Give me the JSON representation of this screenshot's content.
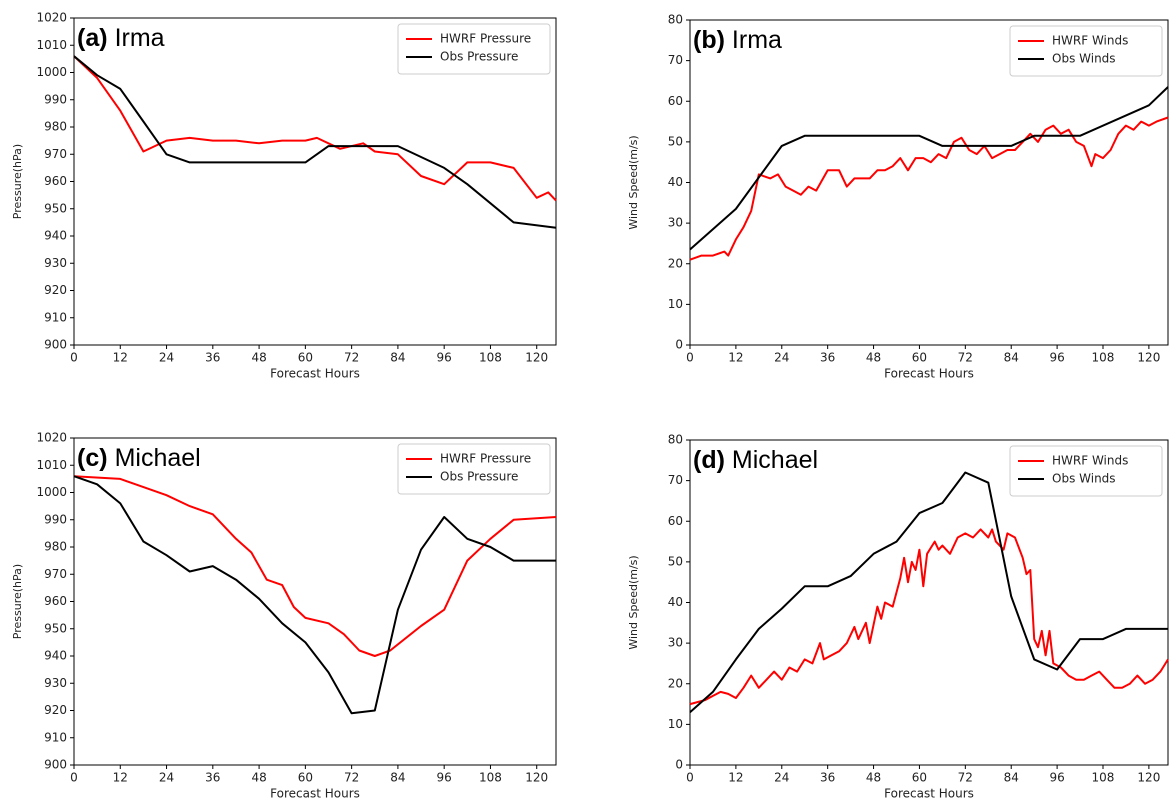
{
  "chart_data": [
    {
      "type": "line",
      "label": "(a)",
      "title": "Irma",
      "xlabel": "Forecast Hours",
      "ylabel": "Pressure(hPa)",
      "xlim": [
        0,
        125
      ],
      "xticks": [
        0,
        12,
        24,
        36,
        48,
        60,
        72,
        84,
        96,
        108,
        120
      ],
      "ylim": [
        900,
        1020
      ],
      "yticks": [
        900,
        910,
        920,
        930,
        940,
        950,
        960,
        970,
        980,
        990,
        1000,
        1010,
        1020
      ],
      "legend": "upper right",
      "series": [
        {
          "name": "HWRF Pressure",
          "color": "#ff0000",
          "x": [
            0,
            6,
            12,
            18,
            24,
            30,
            36,
            42,
            48,
            54,
            60,
            63,
            69,
            75,
            78,
            84,
            90,
            96,
            102,
            108,
            114,
            120,
            123,
            125
          ],
          "values": [
            1006,
            998,
            986,
            971,
            975,
            976,
            975,
            975,
            974,
            975,
            975,
            976,
            972,
            974,
            971,
            970,
            962,
            959,
            967,
            967,
            965,
            954,
            956,
            953
          ]
        },
        {
          "name": "Obs Pressure",
          "color": "#000000",
          "x": [
            0,
            6,
            12,
            18,
            24,
            30,
            60,
            66,
            84,
            96,
            102,
            114,
            125
          ],
          "values": [
            1006,
            999,
            994,
            982,
            970,
            967,
            967,
            973,
            973,
            965,
            959,
            945,
            943
          ]
        }
      ]
    },
    {
      "type": "line",
      "label": "(b)",
      "title": "Irma",
      "xlabel": "Forecast Hours",
      "ylabel": "Wind Speed(m/s)",
      "xlim": [
        0,
        125
      ],
      "xticks": [
        0,
        12,
        24,
        36,
        48,
        60,
        72,
        84,
        96,
        108,
        120
      ],
      "ylim": [
        0,
        80
      ],
      "yticks": [
        0,
        10,
        20,
        30,
        40,
        50,
        60,
        70,
        80
      ],
      "legend": "upper right",
      "series": [
        {
          "name": "HWRF Winds",
          "color": "#ff0000",
          "x": [
            0,
            3,
            6,
            9,
            10,
            12,
            14,
            16,
            18,
            21,
            23,
            25,
            27,
            29,
            31,
            33,
            36,
            39,
            41,
            43,
            45,
            47,
            49,
            51,
            53,
            55,
            57,
            59,
            61,
            63,
            65,
            67,
            69,
            71,
            73,
            75,
            77,
            79,
            81,
            83,
            85,
            87,
            89,
            91,
            93,
            95,
            97,
            99,
            101,
            103,
            105,
            106,
            108,
            110,
            112,
            114,
            116,
            118,
            120,
            122,
            125
          ],
          "values": [
            21,
            22,
            22,
            23,
            22,
            26,
            29,
            33,
            42,
            41,
            42,
            39,
            38,
            37,
            39,
            38,
            43,
            43,
            39,
            41,
            41,
            41,
            43,
            43,
            44,
            46,
            43,
            46,
            46,
            45,
            47,
            46,
            50,
            51,
            48,
            47,
            49,
            46,
            47,
            48,
            48,
            50,
            52,
            50,
            53,
            54,
            52,
            53,
            50,
            49,
            44,
            47,
            46,
            48,
            52,
            54,
            53,
            55,
            54,
            55,
            56
          ]
        },
        {
          "name": "Obs Winds",
          "color": "#000000",
          "x": [
            0,
            12,
            24,
            30,
            60,
            66,
            84,
            90,
            102,
            120,
            125
          ],
          "values": [
            23.5,
            33.5,
            49,
            51.5,
            51.5,
            49,
            49,
            51.5,
            51.5,
            59,
            63.5
          ]
        }
      ]
    },
    {
      "type": "line",
      "label": "(c)",
      "title": "Michael",
      "xlabel": "Forecast Hours",
      "ylabel": "Pressure(hPa)",
      "xlim": [
        0,
        125
      ],
      "xticks": [
        0,
        12,
        24,
        36,
        48,
        60,
        72,
        84,
        96,
        108,
        120
      ],
      "ylim": [
        900,
        1020
      ],
      "yticks": [
        900,
        910,
        920,
        930,
        940,
        950,
        960,
        970,
        980,
        990,
        1000,
        1010,
        1020
      ],
      "legend": "upper right",
      "series": [
        {
          "name": "HWRF Pressure",
          "color": "#ff0000",
          "x": [
            0,
            12,
            18,
            24,
            30,
            36,
            42,
            46,
            50,
            54,
            57,
            60,
            66,
            70,
            74,
            78,
            82,
            90,
            96,
            102,
            108,
            114,
            125
          ],
          "values": [
            1006,
            1005,
            1002,
            999,
            995,
            992,
            983,
            978,
            968,
            966,
            958,
            954,
            952,
            948,
            942,
            940,
            942,
            951,
            957,
            975,
            983,
            990,
            991
          ]
        },
        {
          "name": "Obs Pressure",
          "color": "#000000",
          "x": [
            0,
            6,
            12,
            18,
            24,
            30,
            36,
            42,
            48,
            54,
            60,
            66,
            72,
            78,
            84,
            90,
            96,
            102,
            108,
            114,
            125
          ],
          "values": [
            1006,
            1003,
            996,
            982,
            977,
            971,
            973,
            968,
            961,
            952,
            945,
            934,
            919,
            920,
            957,
            979,
            991,
            983,
            980,
            975,
            975
          ]
        }
      ]
    },
    {
      "type": "line",
      "label": "(d)",
      "title": "Michael",
      "xlabel": "Forecast Hours",
      "ylabel": "Wind Speed(m/s)",
      "xlim": [
        0,
        125
      ],
      "xticks": [
        0,
        12,
        24,
        36,
        48,
        60,
        72,
        84,
        96,
        108,
        120
      ],
      "ylim": [
        0,
        80
      ],
      "yticks": [
        0,
        10,
        20,
        30,
        40,
        50,
        60,
        70,
        80
      ],
      "legend": "upper right",
      "series": [
        {
          "name": "HWRF Winds",
          "color": "#ff0000",
          "x": [
            0,
            4,
            6,
            8,
            10,
            12,
            14,
            16,
            18,
            20,
            22,
            24,
            26,
            28,
            30,
            32,
            34,
            35,
            37,
            39,
            41,
            43,
            44,
            46,
            47,
            49,
            50,
            51,
            53,
            55,
            56,
            57,
            58,
            59,
            60,
            61,
            62,
            64,
            65,
            66,
            68,
            70,
            72,
            74,
            76,
            78,
            79,
            80,
            82,
            83,
            85,
            87,
            88,
            89,
            90,
            91,
            92,
            93,
            94,
            95,
            97,
            99,
            101,
            103,
            105,
            107,
            109,
            111,
            113,
            115,
            117,
            119,
            121,
            123,
            125
          ],
          "values": [
            15,
            16,
            17,
            18,
            17.5,
            16.5,
            19,
            22,
            19,
            21,
            23,
            21,
            24,
            23,
            26,
            25,
            30,
            26,
            27,
            28,
            30,
            34,
            31,
            35,
            30,
            39,
            36,
            40,
            39,
            46,
            51,
            45,
            50,
            48,
            53,
            44,
            52,
            55,
            53,
            54,
            52,
            56,
            57,
            56,
            58,
            56,
            58,
            55,
            53,
            57,
            56,
            51,
            47,
            48,
            31,
            29,
            33,
            27,
            33,
            25,
            24,
            22,
            21,
            21,
            22,
            23,
            21,
            19,
            19,
            20,
            22,
            20,
            21,
            23,
            26
          ]
        },
        {
          "name": "Obs Winds",
          "color": "#000000",
          "x": [
            0,
            6,
            12,
            18,
            24,
            30,
            36,
            42,
            48,
            54,
            60,
            66,
            72,
            78,
            84,
            90,
            96,
            102,
            108,
            114,
            125
          ],
          "values": [
            13,
            18,
            26,
            33.5,
            38.5,
            44,
            44,
            46.5,
            52,
            55,
            62,
            64.5,
            72,
            69.5,
            41.5,
            26,
            23.5,
            31,
            31,
            33.5,
            33.5
          ]
        }
      ]
    }
  ]
}
